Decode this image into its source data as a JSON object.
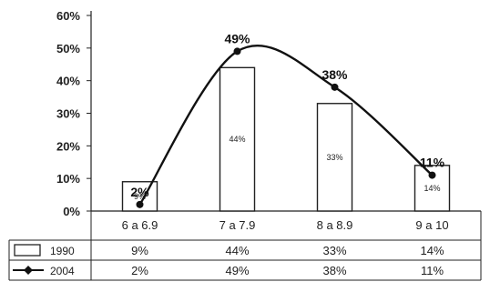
{
  "chart_data": {
    "type": "bar",
    "categories": [
      "6 a 6.9",
      "7 a 7.9",
      "8 a 8.9",
      "9 a 10"
    ],
    "series": [
      {
        "name": "1990",
        "kind": "bar",
        "values": [
          9,
          44,
          33,
          14
        ],
        "labels": [
          "9%",
          "44%",
          "33%",
          "14%"
        ]
      },
      {
        "name": "2004",
        "kind": "line",
        "values": [
          2,
          49,
          38,
          11
        ],
        "labels": [
          "2%",
          "49%",
          "38%",
          "11%"
        ]
      }
    ],
    "y_ticks": [
      "0%",
      "10%",
      "20%",
      "30%",
      "40%",
      "50%",
      "60%"
    ],
    "ylim": [
      0,
      60
    ],
    "legend": "data-table-below",
    "grid": false
  }
}
